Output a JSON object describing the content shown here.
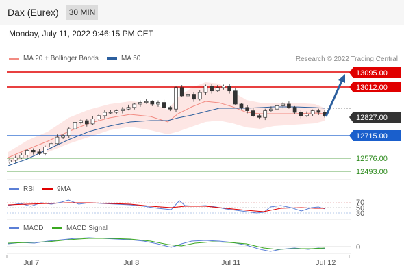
{
  "header": {
    "title": "Dax (Eurex)",
    "timeframe": "30 MIN"
  },
  "timestamp": "Monday, July 11, 2022 9:46:15 PM CET",
  "legend": {
    "ma20": {
      "label": "MA 20 + Bollinger Bands",
      "color": "#f28b82"
    },
    "ma50": {
      "label": "MA 50",
      "color": "#2c5f9e"
    }
  },
  "credit": "Research © 2022 Trading Central",
  "price_levels": [
    {
      "value": "13095.00",
      "type": "resistance",
      "color": "#e00000"
    },
    {
      "value": "13012.00",
      "type": "resistance",
      "color": "#e00000"
    },
    {
      "value": "12827.00",
      "type": "current",
      "color": "#333333"
    },
    {
      "value": "12715.00",
      "type": "pivot",
      "color": "#1a5fcc"
    },
    {
      "value": "12576.00",
      "type": "support",
      "color": "#2e8b1e"
    },
    {
      "value": "12493.00",
      "type": "support",
      "color": "#2e8b1e"
    }
  ],
  "rsi_panel": {
    "legend": [
      {
        "label": "RSI",
        "color": "#5b7fd6"
      },
      {
        "label": "9MA",
        "color": "#e00000"
      }
    ],
    "levels": [
      "70",
      "50",
      "30"
    ]
  },
  "macd_panel": {
    "legend": [
      {
        "label": "MACD",
        "color": "#5b7fd6"
      },
      {
        "label": "MACD Signal",
        "color": "#3aa820"
      }
    ],
    "levels": [
      "0"
    ]
  },
  "x_axis": [
    "Jul 7",
    "Jul 8",
    "Jul 11",
    "Jul 12"
  ],
  "chart_data": {
    "type": "candlestick",
    "instrument": "Dax (Eurex)",
    "interval": "30 MIN",
    "candles_close_approx": [
      12560,
      12575,
      12590,
      12620,
      12610,
      12600,
      12640,
      12660,
      12700,
      12710,
      12750,
      12790,
      12800,
      12780,
      12810,
      12830,
      12850,
      12850,
      12860,
      12870,
      12880,
      12900,
      12910,
      12915,
      12900,
      12910,
      12880,
      12870,
      13000,
      12950,
      12960,
      12930,
      12970,
      13010,
      12980,
      13000,
      13010,
      12980,
      12900,
      12880,
      12860,
      12830,
      12820,
      12860,
      12870,
      12890,
      12900,
      12880,
      12850,
      12830,
      12840,
      12860,
      12850,
      12827
    ],
    "target_arrow": {
      "from": "12827.00",
      "to": "13095.00",
      "direction": "up"
    }
  }
}
